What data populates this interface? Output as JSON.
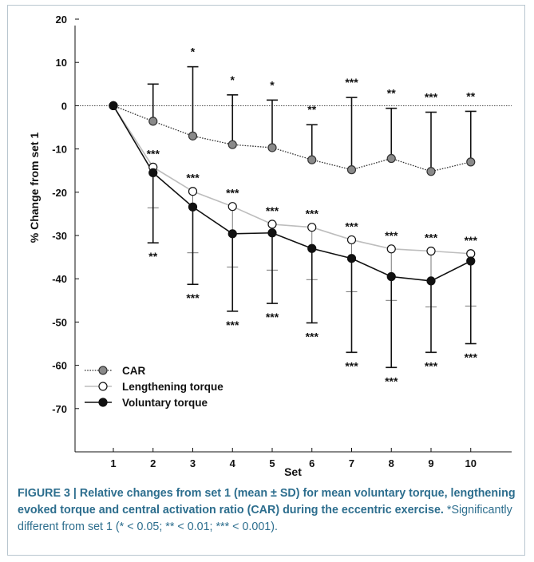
{
  "caption": {
    "label": "FIGURE 3 | Relative changes from set 1 (mean ± SD) for mean voluntary torque, lengthening evoked torque and central activation ratio (CAR) during the eccentric exercise.",
    "note": "*Significantly different from set 1 (* < 0.05; ** < 0.01; *** < 0.001)."
  },
  "chart_data": {
    "type": "line",
    "title": "",
    "xlabel": "Set",
    "ylabel": "% Change from set 1",
    "x": [
      1,
      2,
      3,
      4,
      5,
      6,
      7,
      8,
      9,
      10
    ],
    "xlim": [
      0,
      11
    ],
    "ylim": [
      -80,
      20
    ],
    "yticks": [
      20,
      10,
      0,
      -10,
      -20,
      -30,
      -40,
      -50,
      -60,
      -70
    ],
    "reference_line": 0,
    "grid": false,
    "legend_position": "bottom-left",
    "series": [
      {
        "name": "CAR",
        "marker": "filled-gray",
        "line": "dotted",
        "color": "#8a8a8a",
        "values": [
          0,
          -3.6,
          -7,
          -9,
          -9.7,
          -12.5,
          -14.8,
          -12.2,
          -15.2,
          -13
        ],
        "sd_upper": [
          0,
          5,
          9,
          2.5,
          1.3,
          -4.4,
          1.9,
          -0.6,
          -1.5,
          -1.3
        ],
        "significance": [
          "",
          "",
          "*",
          "*",
          "*",
          "**",
          "***",
          "**",
          "***",
          "**"
        ]
      },
      {
        "name": "Lengthening torque",
        "marker": "open",
        "line": "solid-light",
        "color": "#bdbdbd",
        "values": [
          0,
          -14.2,
          -19.8,
          -23.3,
          -27.4,
          -28.1,
          -31,
          -33.1,
          -33.6,
          -34.2
        ],
        "sd_lower": [
          0,
          -23.6,
          -34,
          -37.3,
          -38,
          -40.2,
          -43,
          -45,
          -46.5,
          -46.3
        ],
        "significance": [
          "",
          "***",
          "***",
          "***",
          "***",
          "***",
          "***",
          "***",
          "***",
          "***"
        ]
      },
      {
        "name": "Voluntary torque",
        "marker": "filled-black",
        "line": "solid-dark",
        "color": "#111111",
        "values": [
          0,
          -15.5,
          -23.4,
          -29.6,
          -29.4,
          -33,
          -35.3,
          -39.5,
          -40.5,
          -35.9
        ],
        "sd_lower": [
          0,
          -31.7,
          -41.3,
          -47.5,
          -45.7,
          -50.2,
          -57,
          -60.5,
          -57,
          -55
        ],
        "significance": [
          "",
          "**",
          "***",
          "***",
          "***",
          "***",
          "***",
          "***",
          "***",
          "***"
        ]
      }
    ]
  }
}
